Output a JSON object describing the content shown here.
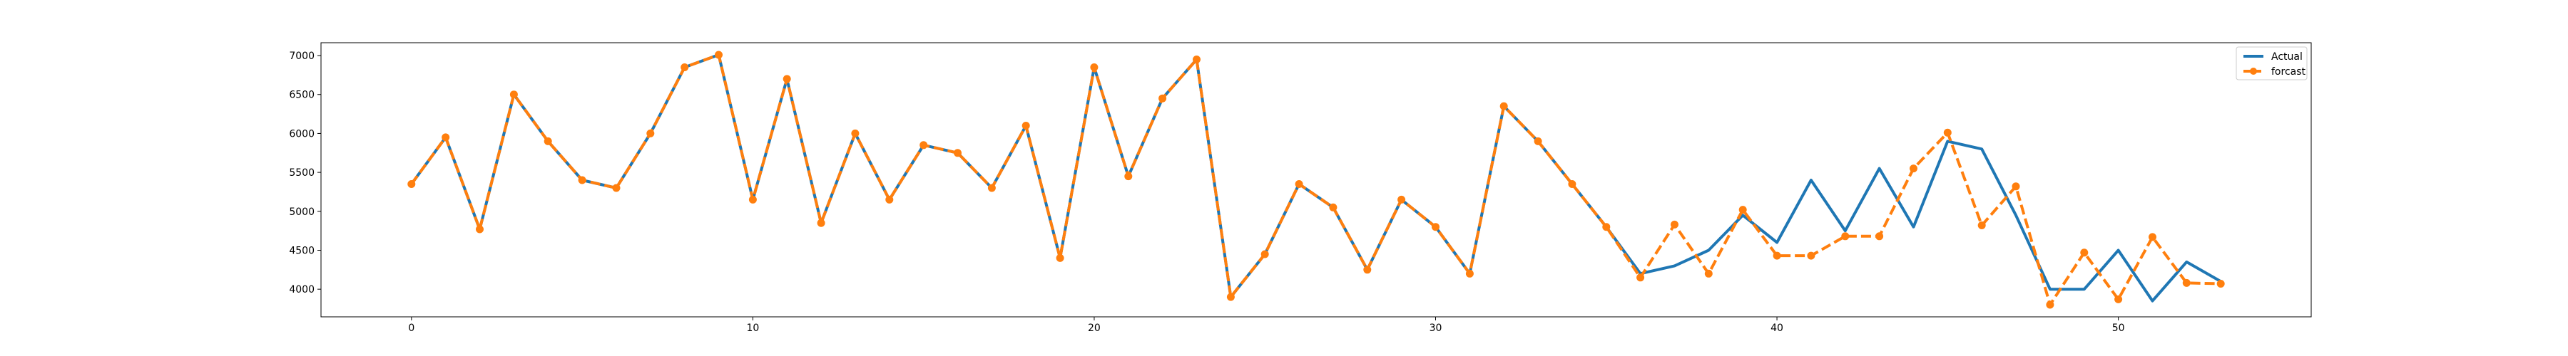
{
  "chart_data": {
    "type": "line",
    "x": [
      0,
      1,
      2,
      3,
      4,
      5,
      6,
      7,
      8,
      9,
      10,
      11,
      12,
      13,
      14,
      15,
      16,
      17,
      18,
      19,
      20,
      21,
      22,
      23,
      24,
      25,
      26,
      27,
      28,
      29,
      30,
      31,
      32,
      33,
      34,
      35,
      36,
      37,
      38,
      39,
      40,
      41,
      42,
      43,
      44,
      45,
      46,
      47,
      48,
      49,
      50,
      51,
      52,
      53
    ],
    "series": [
      {
        "name": "Actual",
        "color": "#1f77b4",
        "style": "solid",
        "marker": "none",
        "values": [
          5350,
          5950,
          4770,
          6500,
          5900,
          5400,
          5300,
          6000,
          6850,
          7010,
          5150,
          6700,
          4850,
          6000,
          5150,
          5850,
          5750,
          5300,
          6100,
          4400,
          6850,
          5450,
          6450,
          6950,
          3900,
          4450,
          5350,
          5050,
          4250,
          5150,
          4800,
          4200,
          6350,
          5900,
          5350,
          4800,
          4200,
          4300,
          4500,
          4950,
          4600,
          5400,
          4750,
          5550,
          4800,
          5900,
          5800,
          4950,
          4000,
          4000,
          4500,
          3850,
          4350,
          4100
        ]
      },
      {
        "name": "forcast",
        "color": "#ff7f0e",
        "style": "dashed",
        "marker": "circle",
        "values": [
          5350,
          5950,
          4770,
          6500,
          5900,
          5400,
          5300,
          6000,
          6850,
          7010,
          5150,
          6700,
          4850,
          6000,
          5150,
          5850,
          5750,
          5300,
          6100,
          4400,
          6850,
          5450,
          6450,
          6950,
          3900,
          4450,
          5350,
          5050,
          4250,
          5150,
          4800,
          4200,
          6350,
          5900,
          5350,
          4800,
          4150,
          4830,
          4200,
          5020,
          4430,
          4430,
          4680,
          4680,
          5550,
          6010,
          4820,
          5320,
          3800,
          4470,
          3870,
          4670,
          4080,
          4070
        ]
      }
    ],
    "xticks": [
      0,
      10,
      20,
      30,
      40,
      50
    ],
    "yticks": [
      4000,
      4500,
      5000,
      5500,
      6000,
      6500,
      7000
    ],
    "xlim": [
      -2.65,
      55.65
    ],
    "ylim": [
      3645,
      7165
    ],
    "grid": false,
    "legend": "top-right"
  }
}
